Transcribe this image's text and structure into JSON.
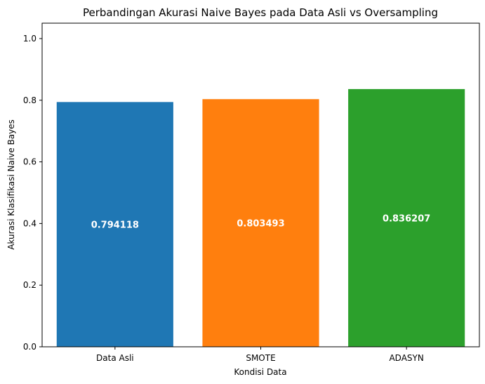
{
  "chart_data": {
    "type": "bar",
    "title": "Perbandingan Akurasi Naive Bayes pada Data Asli vs Oversampling",
    "xlabel": "Kondisi Data",
    "ylabel": "Akurasi Klasifikasi Naive Bayes",
    "categories": [
      "Data Asli",
      "SMOTE",
      "ADASYN"
    ],
    "values": [
      0.794118,
      0.803493,
      0.836207
    ],
    "value_labels": [
      "0.794118",
      "0.803493",
      "0.836207"
    ],
    "colors": [
      "#1f77b4",
      "#ff7f0e",
      "#2ca02c"
    ],
    "ylim": [
      0,
      1.05
    ],
    "yticks": [
      "0.0",
      "0.2",
      "0.4",
      "0.6",
      "0.8",
      "1.0"
    ],
    "grid": false,
    "legend": "none"
  }
}
